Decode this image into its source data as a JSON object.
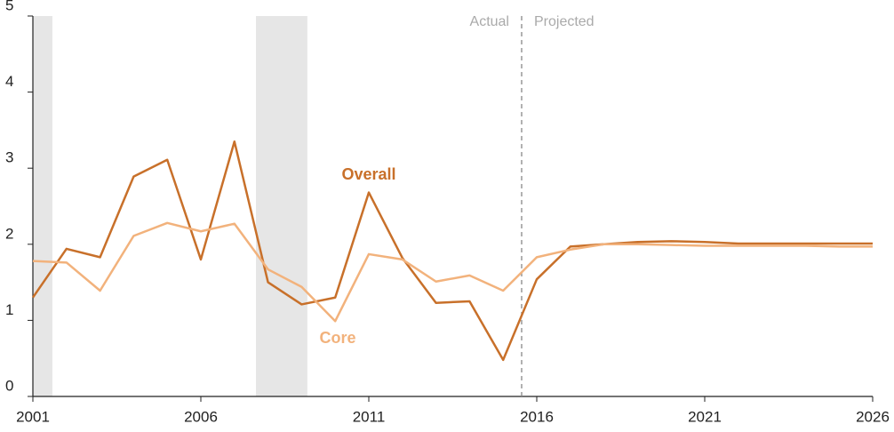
{
  "chart_data": {
    "type": "line",
    "x": [
      2001,
      2002,
      2003,
      2004,
      2005,
      2006,
      2007,
      2008,
      2009,
      2010,
      2011,
      2012,
      2013,
      2014,
      2015,
      2016,
      2017,
      2018,
      2019,
      2020,
      2021,
      2022,
      2023,
      2024,
      2025,
      2026
    ],
    "series": [
      {
        "name": "Overall",
        "color": "#c8702a",
        "values": [
          1.3,
          1.94,
          1.83,
          2.89,
          3.11,
          1.8,
          3.35,
          1.5,
          1.21,
          1.3,
          2.68,
          1.82,
          1.23,
          1.25,
          0.48,
          1.54,
          1.97,
          2.0,
          2.03,
          2.04,
          2.03,
          2.01,
          2.01,
          2.01,
          2.01,
          2.01
        ]
      },
      {
        "name": "Core",
        "color": "#f2b27c",
        "values": [
          1.78,
          1.76,
          1.39,
          2.11,
          2.28,
          2.17,
          2.27,
          1.67,
          1.44,
          0.99,
          1.87,
          1.8,
          1.51,
          1.59,
          1.39,
          1.83,
          1.93,
          2.0,
          2.0,
          1.99,
          1.98,
          1.98,
          1.98,
          1.98,
          1.97,
          1.97
        ]
      }
    ],
    "xlim": [
      2001,
      2026
    ],
    "xticks": [
      2001,
      2006,
      2011,
      2016,
      2021,
      2026
    ],
    "ylim": [
      0,
      5
    ],
    "yticks": [
      0,
      1,
      2,
      3,
      4,
      5
    ],
    "shaded_periods": [
      [
        2001,
        2001.58
      ],
      [
        2007.64,
        2009.17
      ]
    ],
    "shade_color": "#e6e6e6",
    "divider": 2015.55,
    "annotations": [
      "Actual",
      "Projected"
    ]
  }
}
